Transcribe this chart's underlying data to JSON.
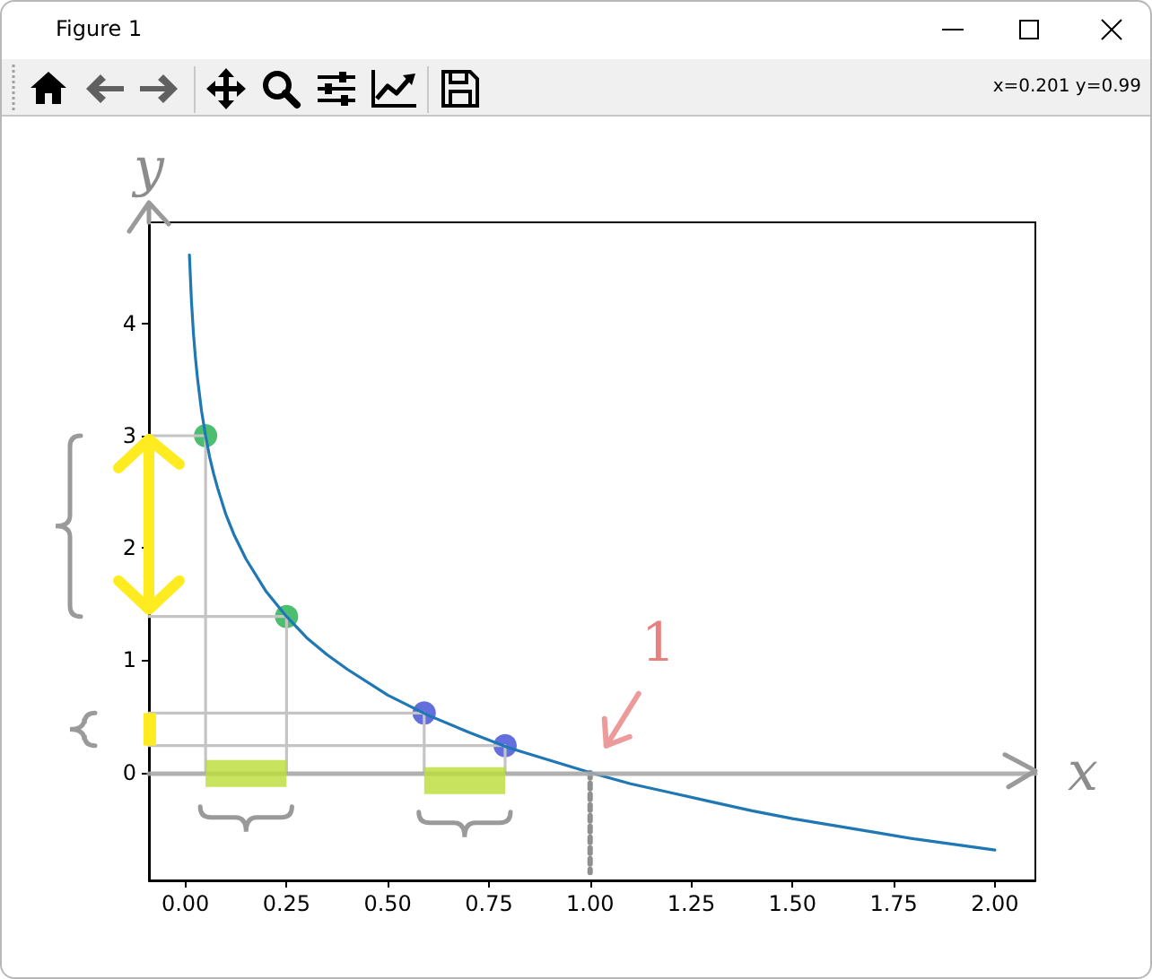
{
  "chart_data": {
    "type": "line",
    "title": "Figure 1",
    "xlabel": "x",
    "ylabel": "y",
    "annotations": [
      "x=0.201 y=0.99",
      {
        "text": "1",
        "x": 1,
        "y": 0
      }
    ],
    "xlim": [
      -0.09,
      2.1
    ],
    "ylim": [
      -0.96,
      4.9
    ],
    "xticks": [
      {
        "value": 0,
        "label": "0.00"
      },
      {
        "value": 0.25,
        "label": "0.25"
      },
      {
        "value": 0.5,
        "label": "0.50"
      },
      {
        "value": 0.75,
        "label": "0.75"
      },
      {
        "value": 1,
        "label": "1.00"
      },
      {
        "value": 1.25,
        "label": "1.25"
      },
      {
        "value": 1.5,
        "label": "1.50"
      },
      {
        "value": 1.75,
        "label": "1.75"
      },
      {
        "value": 2,
        "label": "2.00"
      }
    ],
    "yticks": [
      0,
      1,
      2,
      3,
      4
    ],
    "ref_lines": [
      {
        "axis": "y",
        "value": 0,
        "color": "#a8a8a8"
      }
    ],
    "marker": "none",
    "line_style": "solid",
    "series": [
      {
        "type": "line",
        "color": "#c4c4c4",
        "x": [
          -0.09,
          0.05,
          0.05
        ],
        "values": [
          3.0,
          3.0,
          0
        ]
      },
      {
        "type": "line",
        "color": "#c4c4c4",
        "x": [
          -0.09,
          0.25,
          0.25
        ],
        "values": [
          1.39,
          1.39,
          0
        ]
      },
      {
        "type": "line",
        "color": "#c4c4c4",
        "x": [
          -0.09,
          0.59,
          0.59
        ],
        "values": [
          0.53,
          0.53,
          0
        ]
      },
      {
        "type": "line",
        "color": "#c4c4c4",
        "x": [
          -0.09,
          0.79,
          0.79
        ],
        "values": [
          0.24,
          0.24,
          0
        ]
      },
      {
        "type": "line",
        "color": "#8f8f8f",
        "line_style": "dotted",
        "x": [
          1,
          1
        ],
        "values": [
          0,
          -0.89
        ]
      },
      {
        "type": "line",
        "color": "#1f77b4",
        "x": [
          0.01,
          0.015,
          0.02,
          0.025,
          0.03,
          0.04,
          0.05,
          0.06,
          0.07,
          0.08,
          0.1,
          0.12,
          0.15,
          0.2,
          0.25,
          0.3,
          0.35,
          0.4,
          0.5,
          0.6,
          0.7,
          0.8,
          0.9,
          1.0,
          1.1,
          1.2,
          1.3,
          1.4,
          1.5,
          1.6,
          1.7,
          1.8,
          1.9,
          2.0
        ],
        "values": [
          4.61,
          4.2,
          3.91,
          3.69,
          3.51,
          3.22,
          3.0,
          2.81,
          2.66,
          2.53,
          2.3,
          2.12,
          1.9,
          1.61,
          1.39,
          1.2,
          1.05,
          0.92,
          0.69,
          0.51,
          0.36,
          0.22,
          0.11,
          0,
          -0.1,
          -0.18,
          -0.26,
          -0.34,
          -0.41,
          -0.47,
          -0.53,
          -0.59,
          -0.64,
          -0.69
        ]
      },
      {
        "type": "scatter",
        "color": "#1fae4c",
        "marker": "circle",
        "x": [
          0.05,
          0.25
        ],
        "values": [
          3.0,
          1.39
        ]
      },
      {
        "type": "scatter",
        "color": "#3b4bd3",
        "marker": "circle",
        "x": [
          0.59,
          0.79
        ],
        "values": [
          0.53,
          0.24
        ]
      }
    ]
  }
}
